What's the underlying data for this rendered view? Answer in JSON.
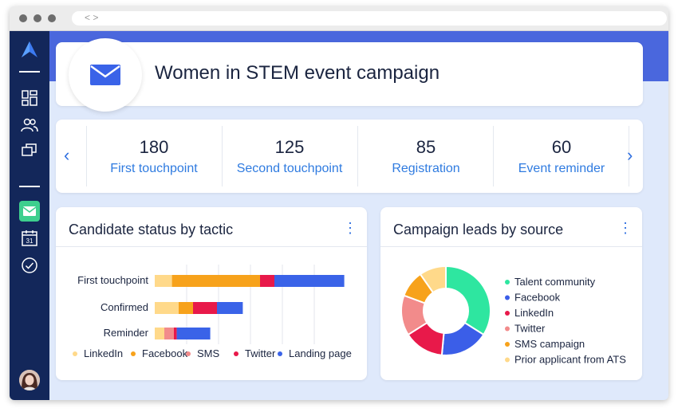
{
  "browser": {
    "nav_glyph": "< >"
  },
  "campaign": {
    "title": "Women in STEM event campaign"
  },
  "stats": [
    {
      "value": "180",
      "label": "First touchpoint"
    },
    {
      "value": "125",
      "label": "Second touchpoint"
    },
    {
      "value": "85",
      "label": "Registration"
    },
    {
      "value": "60",
      "label": "Event reminder"
    }
  ],
  "nav": {
    "prev": "‹",
    "next": "›"
  },
  "tactic_card": {
    "title": "Candidate status by tactic",
    "menu": "⋮"
  },
  "source_card": {
    "title": "Campaign leads by source",
    "menu": "⋮"
  },
  "colors": {
    "LinkedIn": "#ffd98a",
    "Facebook": "#f7a21b",
    "SMS": "#f28b8b",
    "Twitter": "#e8194a",
    "Landing page": "#3a63e8",
    "Talent community": "#2ee6a0",
    "Facebook_lead": "#3b5ee8",
    "LinkedIn_lead": "#e8194a",
    "Twitter_lead": "#f28b8b",
    "SMS campaign": "#f7a21b",
    "Prior applicant from ATS": "#ffd98a"
  },
  "chart_data": [
    {
      "type": "bar",
      "orientation": "horizontal",
      "stacked": true,
      "title": "Candidate status by tactic",
      "categories": [
        "First touchpoint",
        "Confirmed",
        "Reminder"
      ],
      "series": [
        {
          "name": "LinkedIn",
          "values": [
            18,
            25,
            10
          ]
        },
        {
          "name": "Facebook",
          "values": [
            92,
            15,
            0
          ]
        },
        {
          "name": "SMS",
          "values": [
            0,
            0,
            10
          ]
        },
        {
          "name": "Twitter",
          "values": [
            15,
            25,
            3
          ]
        },
        {
          "name": "Landing page",
          "values": [
            73,
            27,
            35
          ]
        }
      ],
      "xlim": [
        0,
        200
      ],
      "grid": true,
      "legend": "bottom"
    },
    {
      "type": "pie",
      "donut": true,
      "title": "Campaign leads by source",
      "labels": [
        "Talent community",
        "Facebook",
        "LinkedIn",
        "Twitter",
        "SMS campaign",
        "Prior applicant from ATS"
      ],
      "values": [
        35,
        18,
        15,
        15,
        10,
        10
      ],
      "legend": "right"
    }
  ]
}
